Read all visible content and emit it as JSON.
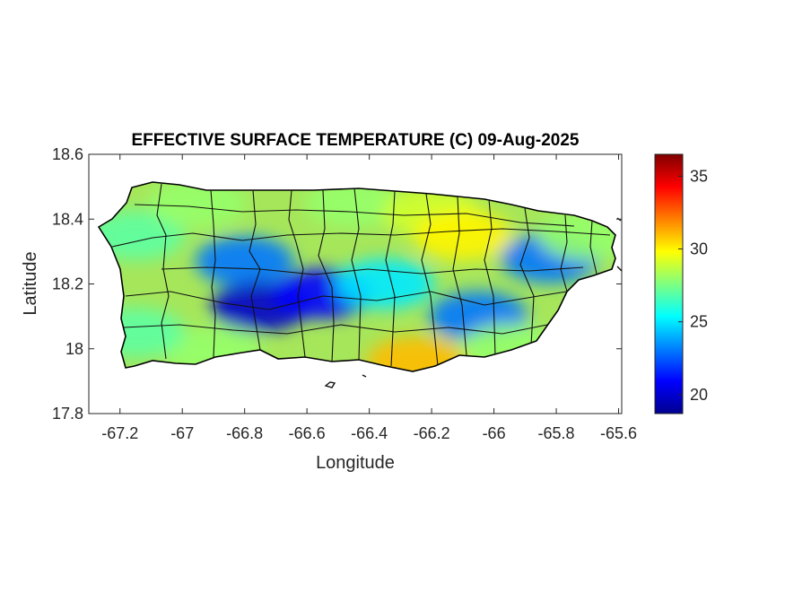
{
  "title": "EFFECTIVE SURFACE TEMPERATURE (C) 09-Aug-2025",
  "xlabel": "Longitude",
  "ylabel": "Latitude",
  "x_ticks": [
    "-67.2",
    "-67",
    "-66.8",
    "-66.6",
    "-66.4",
    "-66.2",
    "-66",
    "-65.8",
    "-65.6"
  ],
  "y_ticks": [
    "18.6",
    "18.4",
    "18.2",
    "18",
    "17.8"
  ],
  "colorbar": {
    "ticks": [
      "35",
      "30",
      "25",
      "20"
    ],
    "range": [
      18.7,
      36.5
    ],
    "colormap": "jet"
  },
  "chart_data": {
    "type": "heatmap",
    "title": "EFFECTIVE SURFACE TEMPERATURE (C) 09-Aug-2025",
    "xlabel": "Longitude",
    "ylabel": "Latitude",
    "xlim": [
      -67.3,
      -65.59
    ],
    "ylim": [
      17.8,
      18.6
    ],
    "x_tick_values": [
      -67.2,
      -67,
      -66.8,
      -66.6,
      -66.4,
      -66.2,
      -66,
      -65.8,
      -65.6
    ],
    "y_tick_values": [
      18.6,
      18.4,
      18.2,
      18.0,
      17.8
    ],
    "value_range": [
      18.7,
      36.5
    ],
    "units": "C",
    "region_values": [
      {
        "lon": -67.15,
        "lat": 18.35,
        "value": 27
      },
      {
        "lon": -66.95,
        "lat": 18.45,
        "value": 28
      },
      {
        "lon": -66.8,
        "lat": 18.27,
        "value": 23
      },
      {
        "lon": -66.75,
        "lat": 18.13,
        "value": 20
      },
      {
        "lon": -66.55,
        "lat": 18.17,
        "value": 21
      },
      {
        "lon": -66.45,
        "lat": 18.45,
        "value": 28
      },
      {
        "lon": -66.35,
        "lat": 18.2,
        "value": 25
      },
      {
        "lon": -66.2,
        "lat": 18.42,
        "value": 29
      },
      {
        "lon": -66.1,
        "lat": 18.35,
        "value": 30
      },
      {
        "lon": -66.05,
        "lat": 18.1,
        "value": 23
      },
      {
        "lon": -65.95,
        "lat": 18.0,
        "value": 28
      },
      {
        "lon": -65.82,
        "lat": 18.28,
        "value": 23
      },
      {
        "lon": -65.7,
        "lat": 18.35,
        "value": 28
      },
      {
        "lon": -66.25,
        "lat": 17.96,
        "value": 31
      },
      {
        "lon": -66.9,
        "lat": 17.99,
        "value": 28
      },
      {
        "lon": -67.15,
        "lat": 18.05,
        "value": 27
      }
    ],
    "grid": false,
    "legend": "colorbar-right"
  }
}
